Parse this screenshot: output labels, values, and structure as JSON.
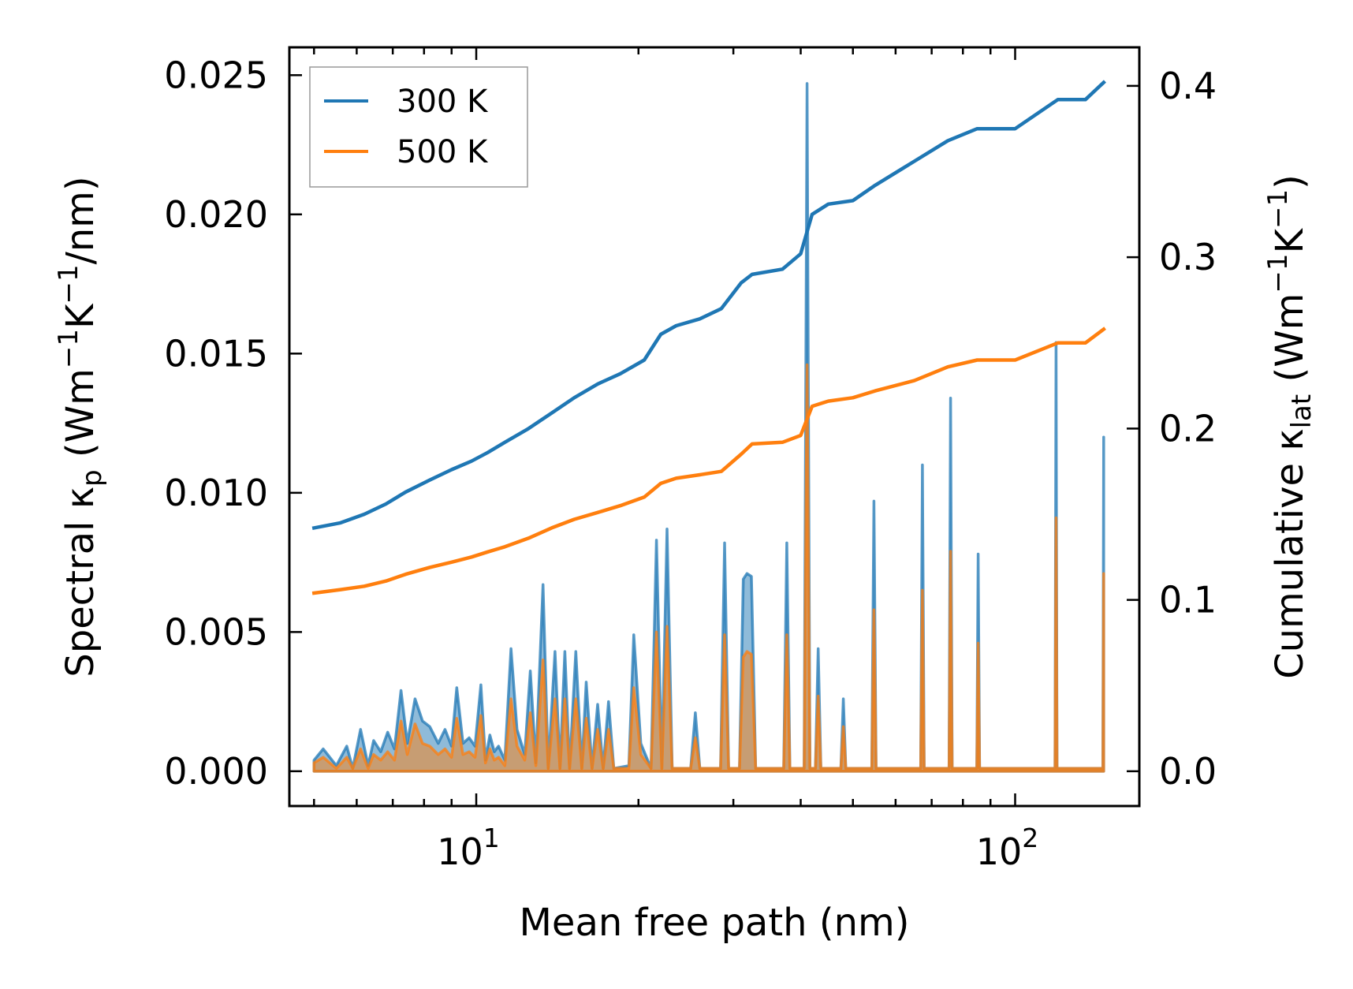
{
  "chart_data": {
    "type": "line",
    "xlabel": "Mean free path (nm)",
    "ylabel_left": {
      "main": "Spectral κ",
      "sub": "p",
      "unit_open": " (Wm",
      "sup1": "−1",
      "unit_mid": "K",
      "sup2": "−1",
      "unit_close": "/nm)"
    },
    "ylabel_right": {
      "main": "Cumulative κ",
      "sub": "lat",
      "unit_open": " (Wm",
      "sup1": "−1",
      "unit_mid": "K",
      "sup2": "−1",
      "unit_close": ")"
    },
    "x_scale": "log",
    "xlim": [
      4.5,
      170
    ],
    "ylim_left": [
      -0.00125,
      0.026
    ],
    "ylim_right": [
      -0.0203,
      0.4225
    ],
    "x_ticks": [
      {
        "value": 10,
        "base": "10",
        "exp": "1"
      },
      {
        "value": 100,
        "base": "10",
        "exp": "2"
      }
    ],
    "y_ticks_left": [
      {
        "value": 0.0,
        "label": "0.000"
      },
      {
        "value": 0.005,
        "label": "0.005"
      },
      {
        "value": 0.01,
        "label": "0.010"
      },
      {
        "value": 0.015,
        "label": "0.015"
      },
      {
        "value": 0.02,
        "label": "0.020"
      },
      {
        "value": 0.025,
        "label": "0.025"
      }
    ],
    "y_ticks_right": [
      {
        "value": 0.0,
        "label": "0.0"
      },
      {
        "value": 0.1,
        "label": "0.1"
      },
      {
        "value": 0.2,
        "label": "0.2"
      },
      {
        "value": 0.3,
        "label": "0.3"
      },
      {
        "value": 0.4,
        "label": "0.4"
      }
    ],
    "legend": {
      "position": "upper-left"
    },
    "series": [
      {
        "name": "300 K",
        "color": "#1f77b4",
        "cumulative": [
          [
            5.0,
            0.142
          ],
          [
            5.6,
            0.145
          ],
          [
            6.2,
            0.15
          ],
          [
            6.8,
            0.156
          ],
          [
            7.4,
            0.163
          ],
          [
            8.2,
            0.17
          ],
          [
            9.0,
            0.176
          ],
          [
            9.8,
            0.181
          ],
          [
            10.5,
            0.186
          ],
          [
            11.3,
            0.192
          ],
          [
            12.5,
            0.2
          ],
          [
            13.8,
            0.209
          ],
          [
            15.2,
            0.218
          ],
          [
            16.8,
            0.226
          ],
          [
            18.5,
            0.232
          ],
          [
            20.5,
            0.24
          ],
          [
            22.0,
            0.255
          ],
          [
            23.5,
            0.26
          ],
          [
            26.0,
            0.264
          ],
          [
            28.5,
            0.27
          ],
          [
            31.0,
            0.285
          ],
          [
            32.5,
            0.29
          ],
          [
            37.0,
            0.293
          ],
          [
            40.0,
            0.302
          ],
          [
            42.0,
            0.325
          ],
          [
            45.0,
            0.331
          ],
          [
            50.0,
            0.333
          ],
          [
            55.0,
            0.342
          ],
          [
            65.0,
            0.356
          ],
          [
            75.0,
            0.368
          ],
          [
            85.0,
            0.375
          ],
          [
            100.0,
            0.375
          ],
          [
            120.0,
            0.392
          ],
          [
            135.0,
            0.392
          ],
          [
            146.0,
            0.402
          ]
        ],
        "spectral": [
          [
            5.0,
            0.0004
          ],
          [
            5.2,
            0.0008
          ],
          [
            5.5,
            0.0002
          ],
          [
            5.75,
            0.0009
          ],
          [
            5.9,
            0.0001
          ],
          [
            6.1,
            0.0015
          ],
          [
            6.3,
            0.0002
          ],
          [
            6.45,
            0.0011
          ],
          [
            6.65,
            0.0007
          ],
          [
            6.85,
            0.0014
          ],
          [
            7.05,
            0.0008
          ],
          [
            7.25,
            0.0029
          ],
          [
            7.45,
            0.001
          ],
          [
            7.7,
            0.0026
          ],
          [
            7.95,
            0.0018
          ],
          [
            8.2,
            0.0016
          ],
          [
            8.5,
            0.001
          ],
          [
            8.75,
            0.0015
          ],
          [
            9.0,
            0.0009
          ],
          [
            9.2,
            0.003
          ],
          [
            9.45,
            0.001
          ],
          [
            9.7,
            0.0012
          ],
          [
            9.95,
            0.0009
          ],
          [
            10.2,
            0.0031
          ],
          [
            10.4,
            0.0004
          ],
          [
            10.6,
            0.0013
          ],
          [
            10.8,
            0.0007
          ],
          [
            11.0,
            0.0009
          ],
          [
            11.3,
            0.0004
          ],
          [
            11.6,
            0.0044
          ],
          [
            11.9,
            0.0015
          ],
          [
            12.3,
            0.0006
          ],
          [
            12.6,
            0.0036
          ],
          [
            12.9,
            0.0003
          ],
          [
            13.3,
            0.0067
          ],
          [
            13.6,
            0.0001
          ],
          [
            14.0,
            0.0043
          ],
          [
            14.3,
            0.0001
          ],
          [
            14.6,
            0.0043
          ],
          [
            14.9,
            0.0001
          ],
          [
            15.3,
            0.0043
          ],
          [
            15.7,
            0.0001
          ],
          [
            16.0,
            0.0032
          ],
          [
            16.4,
            0.0001
          ],
          [
            16.8,
            0.0024
          ],
          [
            17.2,
            0.0001
          ],
          [
            17.6,
            0.0025
          ],
          [
            18.0,
            0.0001
          ],
          [
            19.2,
            0.0002
          ],
          [
            19.6,
            0.0049
          ],
          [
            20.2,
            0.001
          ],
          [
            21.1,
            0.0001
          ],
          [
            21.6,
            0.0083
          ],
          [
            22.1,
            0.0001
          ],
          [
            22.6,
            0.0087
          ],
          [
            23.1,
            0.0001
          ],
          [
            25.0,
            0.0001
          ],
          [
            25.5,
            0.0021
          ],
          [
            26.0,
            0.0001
          ],
          [
            28.4,
            0.0001
          ],
          [
            28.9,
            0.0082
          ],
          [
            29.4,
            0.0001
          ],
          [
            30.8,
            0.0001
          ],
          [
            31.3,
            0.0069
          ],
          [
            31.8,
            0.0071
          ],
          [
            32.4,
            0.007
          ],
          [
            33.0,
            0.0001
          ],
          [
            37.2,
            0.0001
          ],
          [
            37.7,
            0.0082
          ],
          [
            38.2,
            0.0001
          ],
          [
            40.6,
            0.0001
          ],
          [
            41.1,
            0.0247
          ],
          [
            41.6,
            0.0001
          ],
          [
            42.6,
            0.0001
          ],
          [
            43.1,
            0.0044
          ],
          [
            43.6,
            0.0001
          ],
          [
            47.5,
            0.0001
          ],
          [
            48.0,
            0.0026
          ],
          [
            48.5,
            0.0001
          ],
          [
            54.2,
            0.0001
          ],
          [
            54.7,
            0.0097
          ],
          [
            55.2,
            0.0001
          ],
          [
            66.8,
            0.0001
          ],
          [
            67.3,
            0.011
          ],
          [
            67.8,
            0.0001
          ],
          [
            75.4,
            0.0001
          ],
          [
            75.9,
            0.0134
          ],
          [
            76.4,
            0.0001
          ],
          [
            84.9,
            0.0001
          ],
          [
            85.4,
            0.0078
          ],
          [
            85.9,
            0.0001
          ],
          [
            118.6,
            0.0001
          ],
          [
            119.1,
            0.0154
          ],
          [
            119.6,
            0.0001
          ],
          [
            145.5,
            0.0001
          ],
          [
            146.0,
            0.012
          ]
        ]
      },
      {
        "name": "500 K",
        "color": "#ff7f0e",
        "cumulative": [
          [
            5.0,
            0.104
          ],
          [
            5.6,
            0.106
          ],
          [
            6.2,
            0.108
          ],
          [
            6.8,
            0.111
          ],
          [
            7.4,
            0.115
          ],
          [
            8.2,
            0.119
          ],
          [
            9.0,
            0.122
          ],
          [
            9.8,
            0.125
          ],
          [
            10.5,
            0.128
          ],
          [
            11.3,
            0.131
          ],
          [
            12.5,
            0.136
          ],
          [
            13.8,
            0.142
          ],
          [
            15.2,
            0.147
          ],
          [
            16.8,
            0.151
          ],
          [
            18.5,
            0.155
          ],
          [
            20.5,
            0.16
          ],
          [
            22.0,
            0.168
          ],
          [
            23.5,
            0.171
          ],
          [
            26.0,
            0.173
          ],
          [
            28.5,
            0.175
          ],
          [
            31.0,
            0.185
          ],
          [
            32.5,
            0.191
          ],
          [
            37.0,
            0.192
          ],
          [
            40.0,
            0.196
          ],
          [
            42.0,
            0.213
          ],
          [
            45.0,
            0.216
          ],
          [
            50.0,
            0.218
          ],
          [
            55.0,
            0.222
          ],
          [
            65.0,
            0.228
          ],
          [
            75.0,
            0.236
          ],
          [
            85.0,
            0.24
          ],
          [
            100.0,
            0.24
          ],
          [
            120.0,
            0.25
          ],
          [
            135.0,
            0.25
          ],
          [
            146.0,
            0.258
          ]
        ],
        "spectral": [
          [
            5.0,
            0.0003
          ],
          [
            5.2,
            0.0005
          ],
          [
            5.5,
            0.0001
          ],
          [
            5.75,
            0.0005
          ],
          [
            5.9,
            0.0001
          ],
          [
            6.1,
            0.0008
          ],
          [
            6.3,
            0.0001
          ],
          [
            6.45,
            0.0006
          ],
          [
            6.65,
            0.0004
          ],
          [
            6.85,
            0.0007
          ],
          [
            7.05,
            0.0004
          ],
          [
            7.25,
            0.0018
          ],
          [
            7.45,
            0.0006
          ],
          [
            7.7,
            0.0017
          ],
          [
            7.95,
            0.001
          ],
          [
            8.2,
            0.0009
          ],
          [
            8.5,
            0.0006
          ],
          [
            8.75,
            0.0008
          ],
          [
            9.0,
            0.0005
          ],
          [
            9.2,
            0.0019
          ],
          [
            9.45,
            0.0006
          ],
          [
            9.7,
            0.0007
          ],
          [
            9.95,
            0.0005
          ],
          [
            10.2,
            0.002
          ],
          [
            10.4,
            0.0003
          ],
          [
            10.6,
            0.0008
          ],
          [
            10.8,
            0.0004
          ],
          [
            11.0,
            0.0005
          ],
          [
            11.3,
            0.0002
          ],
          [
            11.6,
            0.0026
          ],
          [
            11.9,
            0.0009
          ],
          [
            12.3,
            0.0004
          ],
          [
            12.6,
            0.0021
          ],
          [
            12.9,
            0.0002
          ],
          [
            13.3,
            0.004
          ],
          [
            13.6,
            0.0001
          ],
          [
            14.0,
            0.0026
          ],
          [
            14.3,
            0.0001
          ],
          [
            14.6,
            0.0026
          ],
          [
            14.9,
            0.0001
          ],
          [
            15.3,
            0.0026
          ],
          [
            15.7,
            0.0001
          ],
          [
            16.0,
            0.0019
          ],
          [
            16.4,
            0.0001
          ],
          [
            16.8,
            0.0015
          ],
          [
            17.2,
            0.0001
          ],
          [
            17.6,
            0.0015
          ],
          [
            18.0,
            0.0001
          ],
          [
            19.2,
            0.0001
          ],
          [
            19.6,
            0.003
          ],
          [
            20.2,
            0.0006
          ],
          [
            21.1,
            0.0001
          ],
          [
            21.6,
            0.005
          ],
          [
            22.1,
            0.0001
          ],
          [
            22.6,
            0.0052
          ],
          [
            23.1,
            0.0001
          ],
          [
            25.0,
            0.0001
          ],
          [
            25.5,
            0.0012
          ],
          [
            26.0,
            0.0001
          ],
          [
            28.4,
            0.0001
          ],
          [
            28.9,
            0.0049
          ],
          [
            29.4,
            0.0001
          ],
          [
            30.8,
            0.0001
          ],
          [
            31.3,
            0.0041
          ],
          [
            31.8,
            0.0043
          ],
          [
            32.4,
            0.0042
          ],
          [
            33.0,
            0.0001
          ],
          [
            37.2,
            0.0001
          ],
          [
            37.7,
            0.0049
          ],
          [
            38.2,
            0.0001
          ],
          [
            40.6,
            0.0001
          ],
          [
            41.1,
            0.0146
          ],
          [
            41.6,
            0.0001
          ],
          [
            42.6,
            0.0001
          ],
          [
            43.1,
            0.0027
          ],
          [
            43.6,
            0.0001
          ],
          [
            47.5,
            0.0001
          ],
          [
            48.0,
            0.0016
          ],
          [
            48.5,
            0.0001
          ],
          [
            54.2,
            0.0001
          ],
          [
            54.7,
            0.0058
          ],
          [
            55.2,
            0.0001
          ],
          [
            66.8,
            0.0001
          ],
          [
            67.3,
            0.0065
          ],
          [
            67.8,
            0.0001
          ],
          [
            75.4,
            0.0001
          ],
          [
            75.9,
            0.0079
          ],
          [
            76.4,
            0.0001
          ],
          [
            84.9,
            0.0001
          ],
          [
            85.4,
            0.0046
          ],
          [
            85.9,
            0.0001
          ],
          [
            118.6,
            0.0001
          ],
          [
            119.1,
            0.0091
          ],
          [
            119.6,
            0.0001
          ],
          [
            145.5,
            0.0001
          ],
          [
            146.0,
            0.0071
          ]
        ]
      }
    ]
  }
}
